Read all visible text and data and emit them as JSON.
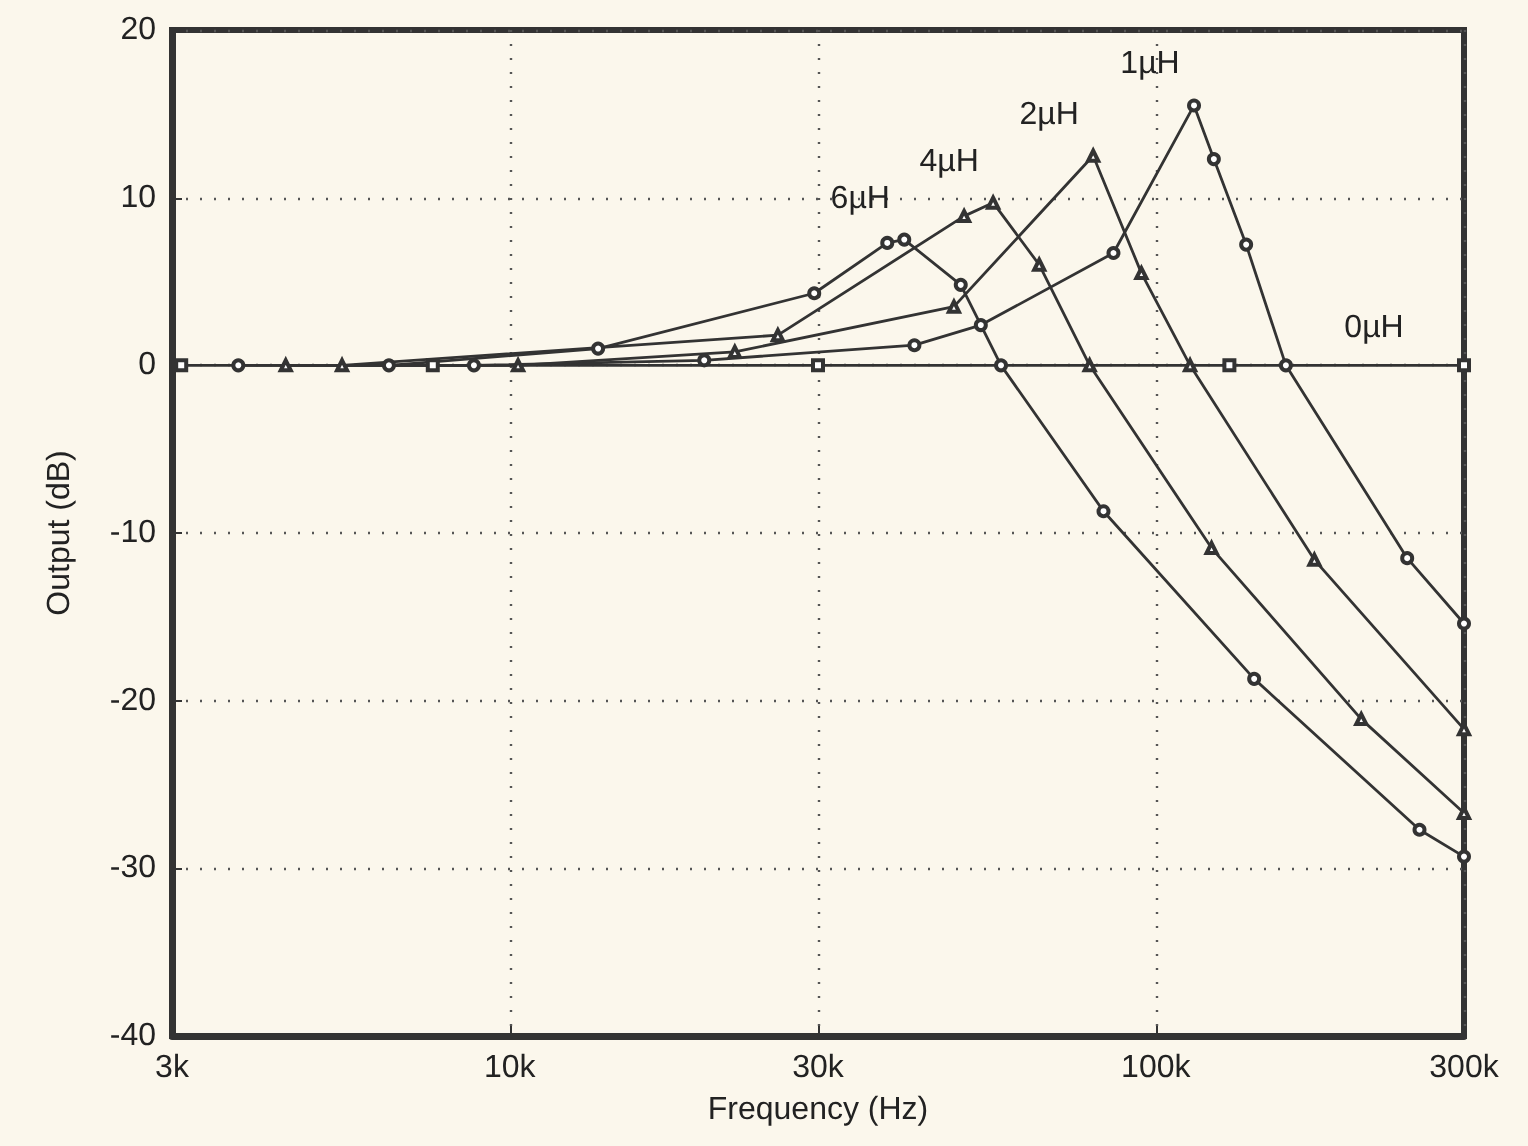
{
  "chart_data": {
    "type": "line",
    "xlabel": "Frequency (Hz)",
    "ylabel": "Output (dB)",
    "log": "x",
    "xlim": [
      3000,
      300000
    ],
    "xticks": [
      {
        "value": 3000,
        "label": "3k"
      },
      {
        "value": 10000,
        "label": "10k"
      },
      {
        "value": 30000,
        "label": "30k"
      },
      {
        "value": 100000,
        "label": "100k"
      },
      {
        "value": 300000,
        "label": "300k"
      }
    ],
    "ylim": [
      -40,
      20
    ],
    "yticks": [
      -40,
      -30,
      -20,
      -10,
      0,
      10,
      20
    ],
    "grid": true,
    "legend": false,
    "line_style": "solid",
    "series": [
      {
        "name": "0µH",
        "color": "#333333",
        "marker": "square",
        "x": [
          3100,
          7600,
          30000,
          130000,
          300000
        ],
        "values": [
          0,
          0,
          0,
          0,
          0
        ]
      },
      {
        "name": "1µH",
        "color": "#333333",
        "marker": "circle",
        "x": [
          3800,
          8800,
          20000,
          42300,
          53600,
          86000,
          114600,
          123000,
          138000,
          159000,
          245000,
          300000
        ],
        "values": [
          0,
          0,
          0.3,
          1.2,
          2.4,
          6.7,
          15.5,
          12.3,
          7.2,
          0,
          -11.5,
          -15.4
        ]
      },
      {
        "name": "2µH",
        "color": "#333333",
        "marker": "triangle",
        "x": [
          4500,
          10300,
          22300,
          48700,
          80000,
          95000,
          113000,
          176000,
          300000
        ],
        "values": [
          0,
          0,
          0.8,
          3.5,
          12.5,
          5.5,
          0,
          -11.6,
          -21.7
        ]
      },
      {
        "name": "4µH",
        "color": "#333333",
        "marker": "triangle",
        "x": [
          5500,
          26000,
          50500,
          56000,
          66000,
          79000,
          122000,
          208000,
          300000
        ],
        "values": [
          0,
          1.8,
          8.9,
          9.7,
          6,
          0,
          -10.9,
          -21.1,
          -26.7
        ]
      },
      {
        "name": "6µH",
        "color": "#333333",
        "marker": "circle",
        "x": [
          6500,
          13700,
          29600,
          38400,
          40800,
          49900,
          57600,
          83000,
          142000,
          256000,
          300000
        ],
        "values": [
          0,
          1.0,
          4.3,
          7.3,
          7.5,
          4.8,
          0,
          -8.7,
          -18.7,
          -27.7,
          -29.3
        ]
      }
    ]
  }
}
